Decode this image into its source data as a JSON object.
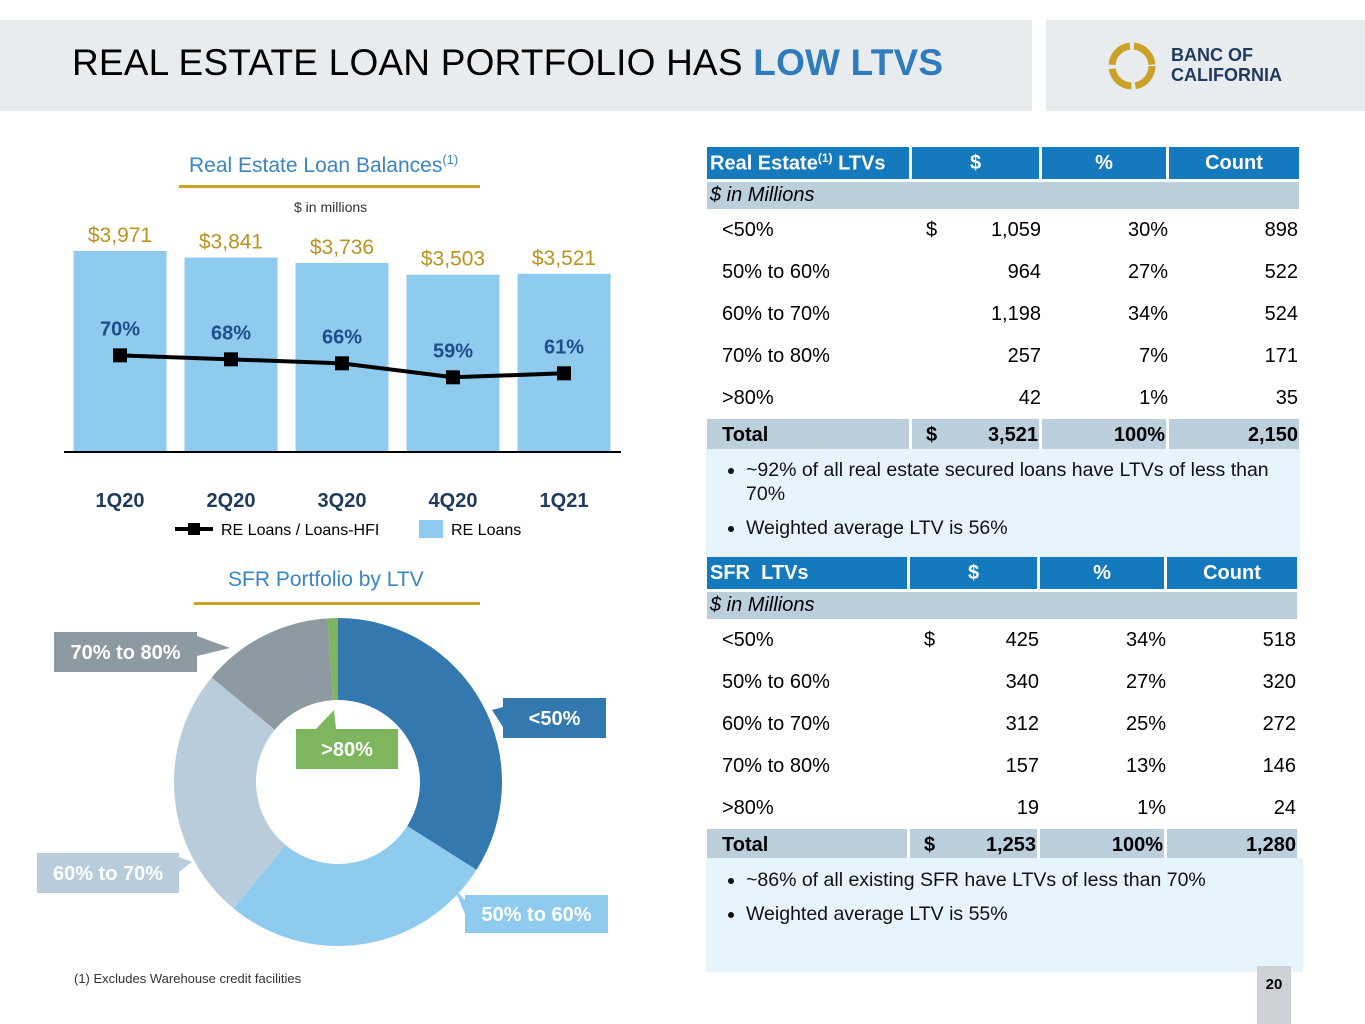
{
  "header": {
    "title_main": "REAL ESTATE LOAN PORTFOLIO HAS ",
    "title_highlight": "LOW LTVS",
    "logo_line1": "BANC OF",
    "logo_line2": "CALIFORNIA"
  },
  "colors": {
    "accent_blue": "#2e7bbd",
    "header_bg": "#e9ecef",
    "bar_fill": "#8ecbee",
    "table_header": "#1479bd",
    "gold": "#c9a227"
  },
  "chart_data": [
    {
      "type": "bar",
      "title": "Real Estate Loan Balances",
      "title_sup": "(1)",
      "subtitle": "$ in millions",
      "categories": [
        "1Q20",
        "2Q20",
        "3Q20",
        "4Q20",
        "1Q21"
      ],
      "series": [
        {
          "name": "RE Loans",
          "values": [
            3971,
            3841,
            3736,
            3503,
            3521
          ],
          "labels": [
            "$3,971",
            "$3,841",
            "$3,736",
            "$3,503",
            "$3,521"
          ]
        },
        {
          "name": "RE Loans / Loans-HFI",
          "values": [
            70,
            68,
            66,
            59,
            61
          ],
          "labels": [
            "70%",
            "68%",
            "66%",
            "59%",
            "61%"
          ]
        }
      ],
      "legend": [
        "RE Loans / Loans-HFI",
        "RE Loans"
      ],
      "ylim": [
        0,
        4500
      ],
      "y2lim": [
        0,
        100
      ]
    },
    {
      "type": "pie",
      "title": "SFR Portfolio by LTV",
      "labels": [
        "<50%",
        "50% to 60%",
        "60% to 70%",
        "70% to 80%",
        ">80%"
      ],
      "values": [
        34,
        27,
        25,
        13,
        1
      ],
      "colors": [
        "#3478b0",
        "#8ecbee",
        "#b9ccdb",
        "#8e9aa1",
        "#7db65f"
      ]
    }
  ],
  "re_table": {
    "header": {
      "title": "Real Estate",
      "sup": "(1)",
      "title_suffix": " LTVs",
      "col1": "$",
      "col2": "%",
      "col3": "Count"
    },
    "subheader": "$ in Millions",
    "rows": [
      {
        "label": "<50%",
        "cur": "$",
        "amount": "1,059",
        "pct": "30%",
        "count": "898"
      },
      {
        "label": "50% to 60%",
        "cur": "",
        "amount": "964",
        "pct": "27%",
        "count": "522"
      },
      {
        "label": "60% to 70%",
        "cur": "",
        "amount": "1,198",
        "pct": "34%",
        "count": "524"
      },
      {
        "label": "70% to 80%",
        "cur": "",
        "amount": "257",
        "pct": "7%",
        "count": "171"
      },
      {
        "label": ">80%",
        "cur": "",
        "amount": "42",
        "pct": "1%",
        "count": "35"
      }
    ],
    "total": {
      "label": "Total",
      "cur": "$",
      "amount": "3,521",
      "pct": "100%",
      "count": "2,150"
    },
    "notes": [
      "~92% of all real estate secured loans have LTVs of less than 70%",
      "Weighted average LTV is 56%"
    ]
  },
  "sfr_table": {
    "header": {
      "title": "SFR  LTVs",
      "col1": "$",
      "col2": "%",
      "col3": "Count"
    },
    "subheader": "$ in Millions",
    "rows": [
      {
        "label": "<50%",
        "cur": "$",
        "amount": "425",
        "pct": "34%",
        "count": "518"
      },
      {
        "label": "50% to 60%",
        "cur": "",
        "amount": "340",
        "pct": "27%",
        "count": "320"
      },
      {
        "label": "60% to 70%",
        "cur": "",
        "amount": "312",
        "pct": "25%",
        "count": "272"
      },
      {
        "label": "70% to 80%",
        "cur": "",
        "amount": "157",
        "pct": "13%",
        "count": "146"
      },
      {
        "label": ">80%",
        "cur": "",
        "amount": "19",
        "pct": "1%",
        "count": "24"
      }
    ],
    "total": {
      "label": "Total",
      "cur": "$",
      "amount": "1,253",
      "pct": "100%",
      "count": "1,280"
    },
    "notes": [
      "~86% of all existing SFR have LTVs of less than 70%",
      "Weighted average LTV is 55%"
    ]
  },
  "footnote": "(1)  Excludes Warehouse credit facilities",
  "page_number": "20"
}
